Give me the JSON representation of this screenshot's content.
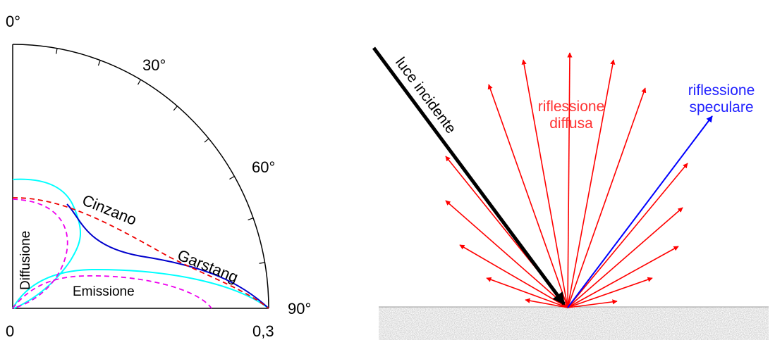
{
  "polar": {
    "angle_labels": [
      "0°",
      "30°",
      "60°",
      "90°"
    ],
    "radius_labels": [
      "0",
      "0,3"
    ],
    "curve_labels": {
      "cinzano": "Cinzano",
      "garstang": "Garstang",
      "diffusione": "Diffusione",
      "emissione": "Emissione"
    }
  },
  "reflection": {
    "incident": "luce incidente",
    "diffuse": [
      "riflessione",
      "diffusa"
    ],
    "specular": [
      "riflessione",
      "speculare"
    ]
  }
}
